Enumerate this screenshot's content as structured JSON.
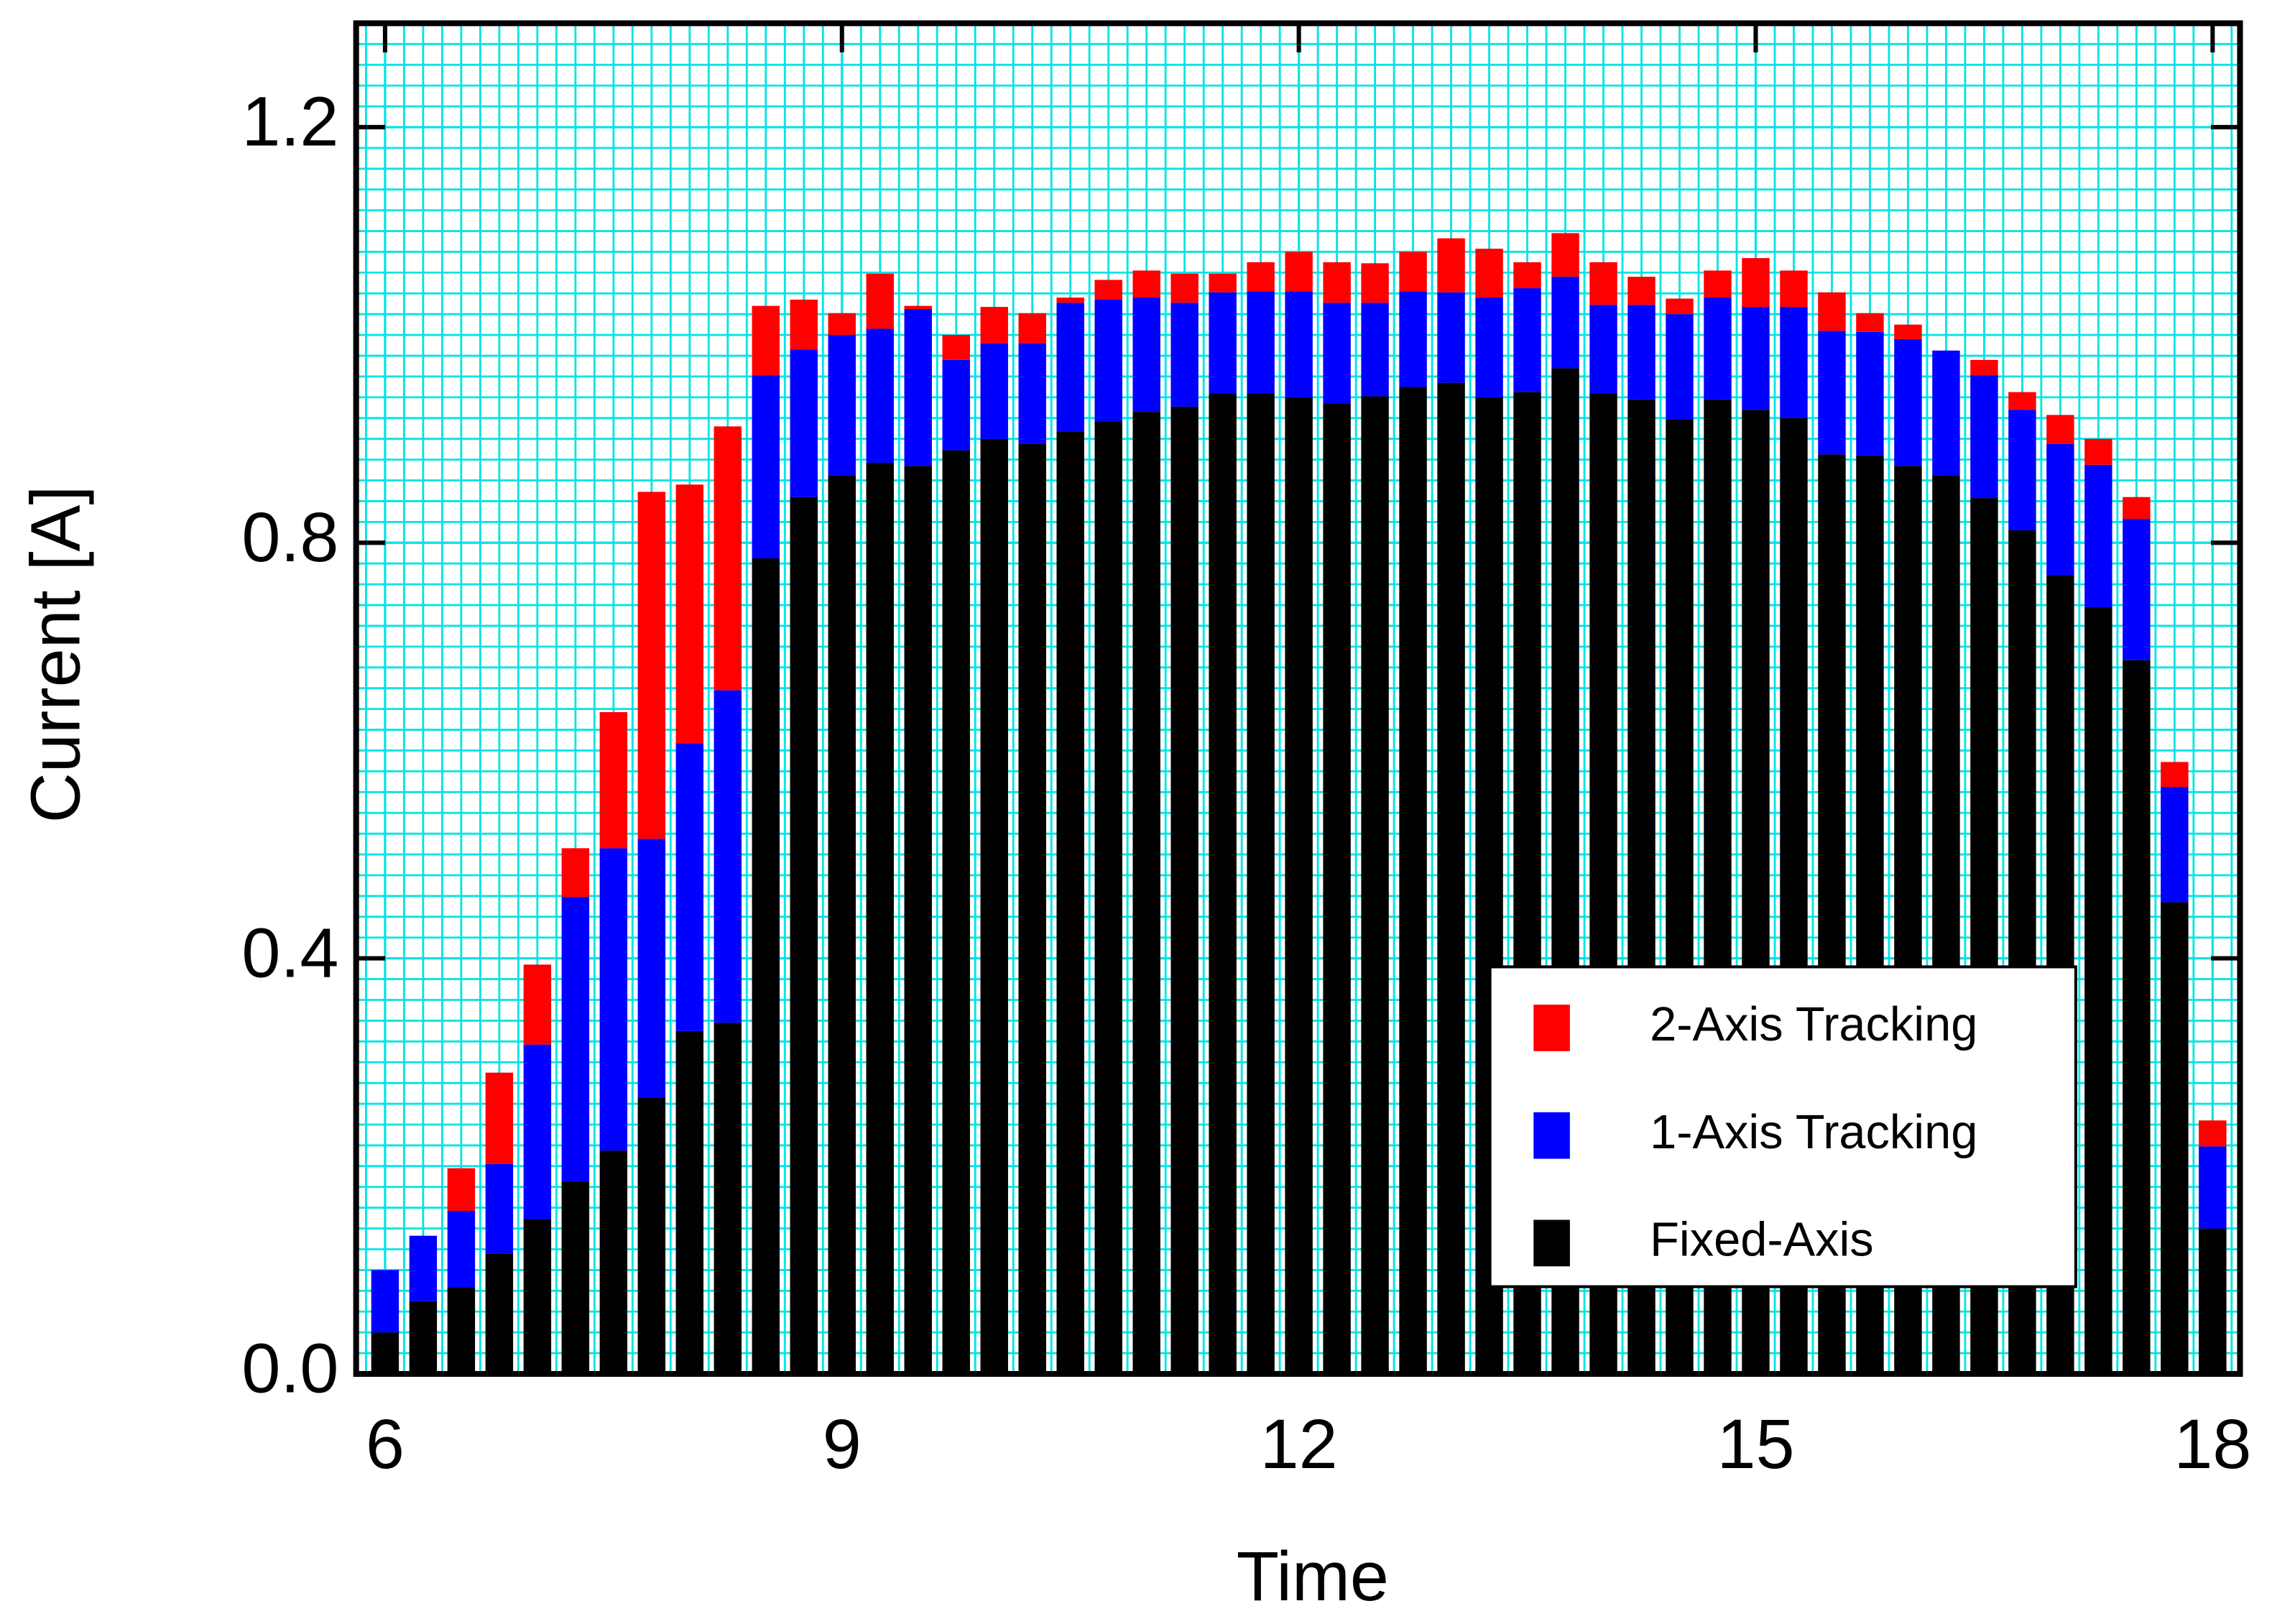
{
  "chart_data": {
    "type": "stacked_bar",
    "x_label": "Time",
    "y_label": "Current [A]",
    "x": [
      6,
      6.25,
      6.5,
      6.75,
      7,
      7.25,
      7.5,
      7.75,
      8,
      8.25,
      8.5,
      8.75,
      9,
      9.25,
      9.5,
      9.75,
      10,
      10.25,
      10.5,
      10.75,
      11,
      11.25,
      11.5,
      11.75,
      12,
      12.25,
      12.5,
      12.75,
      13,
      13.25,
      13.5,
      13.75,
      14,
      14.25,
      14.5,
      14.75,
      15,
      15.25,
      15.5,
      15.75,
      16,
      16.25,
      16.5,
      16.75,
      17,
      17.25,
      17.5,
      17.75,
      18
    ],
    "series": [
      {
        "name": "Fixed-Axis",
        "color": "#000000",
        "values": [
          0.04,
          0.07,
          0.083,
          0.116,
          0.149,
          0.185,
          0.215,
          0.266,
          0.33,
          0.338,
          0.785,
          0.844,
          0.865,
          0.877,
          0.874,
          0.889,
          0.9,
          0.895,
          0.907,
          0.917,
          0.926,
          0.931,
          0.944,
          0.944,
          0.94,
          0.934,
          0.941,
          0.95,
          0.954,
          0.94,
          0.945,
          0.968,
          0.944,
          0.938,
          0.919,
          0.938,
          0.928,
          0.92,
          0.885,
          0.884,
          0.874,
          0.865,
          0.843,
          0.812,
          0.769,
          0.738,
          0.687,
          0.454,
          0.14
        ]
      },
      {
        "name": "1-Axis Tracking",
        "color": "#0000ff",
        "values": [
          0.06,
          0.063,
          0.074,
          0.086,
          0.168,
          0.274,
          0.291,
          0.249,
          0.277,
          0.32,
          0.176,
          0.142,
          0.135,
          0.129,
          0.151,
          0.087,
          0.092,
          0.097,
          0.124,
          0.117,
          0.11,
          0.1,
          0.097,
          0.098,
          0.102,
          0.097,
          0.09,
          0.092,
          0.087,
          0.096,
          0.1,
          0.088,
          0.085,
          0.091,
          0.101,
          0.098,
          0.099,
          0.107,
          0.119,
          0.119,
          0.122,
          0.12,
          0.118,
          0.116,
          0.126,
          0.137,
          0.136,
          0.111,
          0.079
        ]
      },
      {
        "name": "2-Axis Tracking",
        "color": "#ff0000",
        "values": [
          0,
          0,
          0.041,
          0.088,
          0.077,
          0.047,
          0.131,
          0.334,
          0.249,
          0.254,
          0.067,
          0.048,
          0.021,
          0.053,
          0.003,
          0.024,
          0.035,
          0.029,
          0.005,
          0.019,
          0.026,
          0.028,
          0.018,
          0.028,
          0.038,
          0.039,
          0.038,
          0.038,
          0.052,
          0.047,
          0.025,
          0.042,
          0.041,
          0.027,
          0.015,
          0.026,
          0.047,
          0.035,
          0.037,
          0.018,
          0.014,
          0,
          0.015,
          0.017,
          0.028,
          0.025,
          0.021,
          0.024,
          0.025
        ]
      }
    ],
    "xlim": [
      5.81,
      18.18
    ],
    "xticks": [
      6,
      9,
      12,
      15,
      18
    ],
    "ylim": [
      0,
      1.3
    ],
    "yticks": [
      {
        "value": 0,
        "label": "0.0"
      },
      0.4,
      0.8,
      1.2
    ],
    "grid": true,
    "grid_color": "#00e5e5",
    "legend": "lower right"
  }
}
